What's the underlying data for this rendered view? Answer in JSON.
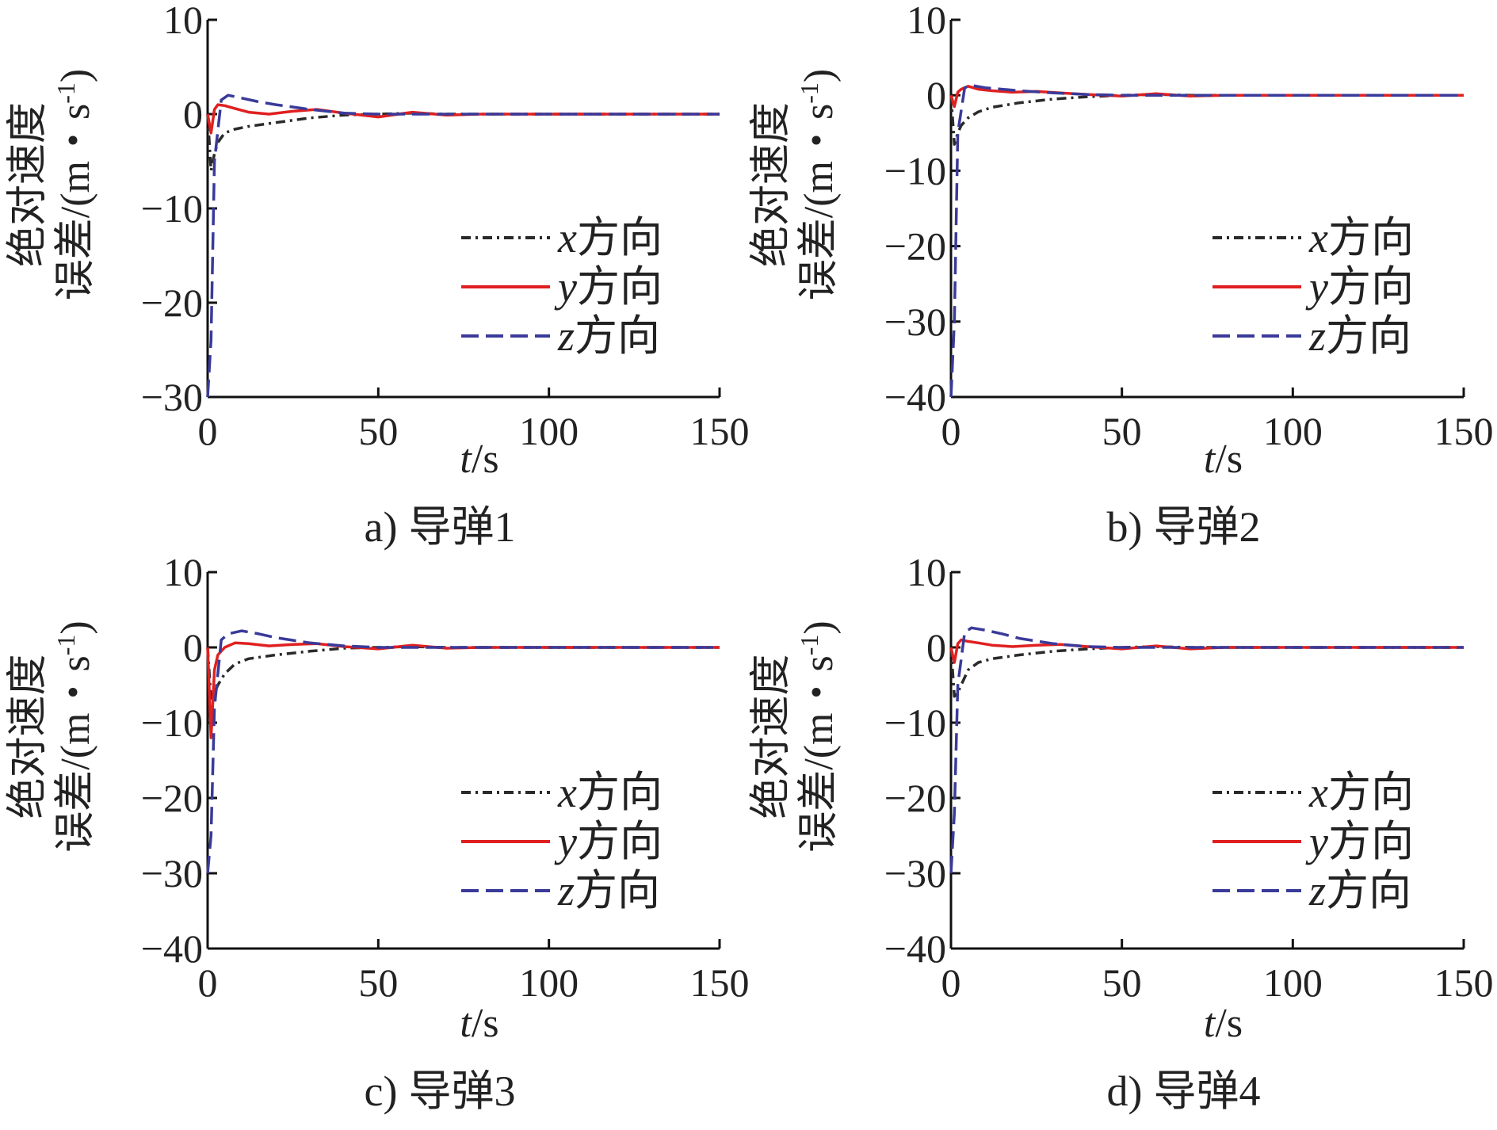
{
  "chart_data": [
    {
      "type": "line",
      "caption_label": "a)",
      "caption_name": "导弹1",
      "xlabel_var": "t",
      "xlabel_unit": "/s",
      "ylabel_line1": "绝对速度",
      "ylabel_line2_prefix": "误差/(m・s",
      "ylabel_sup": "-1",
      "ylabel_line2_suffix": ")",
      "xlim": [
        0,
        150
      ],
      "ylim": [
        -30,
        10
      ],
      "xticks": [
        "0",
        "50",
        "100",
        "150"
      ],
      "yticks": [
        "−30",
        "−20",
        "−10",
        "0",
        "10"
      ],
      "grid": false,
      "legend_position": "right",
      "series": [
        {
          "name_var": "x",
          "name_text": "方向",
          "color": "#2a2a2a",
          "dash": "dashdot",
          "x": [
            0,
            1,
            2,
            3,
            5,
            8,
            12,
            20,
            30,
            40,
            50,
            60,
            70,
            80,
            100,
            120,
            150
          ],
          "y": [
            0,
            -6,
            -4.2,
            -3,
            -2,
            -1.6,
            -1.3,
            -0.9,
            -0.4,
            -0.1,
            0,
            0.1,
            0,
            0,
            0,
            0,
            0
          ]
        },
        {
          "name_var": "y",
          "name_text": "方向",
          "color": "#e02020",
          "dash": "solid",
          "x": [
            0,
            1,
            2,
            3,
            5,
            8,
            12,
            18,
            25,
            32,
            40,
            50,
            60,
            70,
            80,
            90,
            100,
            120,
            150
          ],
          "y": [
            0,
            -2,
            0.5,
            1,
            0.9,
            0.6,
            0.2,
            0,
            0.3,
            0.5,
            0.1,
            -0.3,
            0.2,
            -0.1,
            0,
            0,
            0,
            0,
            0
          ]
        },
        {
          "name_var": "z",
          "name_text": "方向",
          "color": "#3a3a9a",
          "dash": "dashed",
          "x": [
            0,
            1,
            2,
            4,
            6,
            10,
            15,
            20,
            30,
            40,
            50,
            60,
            70,
            80,
            100,
            120,
            150
          ],
          "y": [
            -30,
            -24,
            -5,
            1.5,
            2,
            1.7,
            1.3,
            1,
            0.5,
            0.1,
            0,
            0,
            0,
            0,
            0,
            0,
            0
          ]
        }
      ]
    },
    {
      "type": "line",
      "caption_label": "b)",
      "caption_name": "导弹2",
      "xlabel_var": "t",
      "xlabel_unit": "/s",
      "ylabel_line1": "绝对速度",
      "ylabel_line2_prefix": "误差/(m・s",
      "ylabel_sup": "-1",
      "ylabel_line2_suffix": ")",
      "xlim": [
        0,
        150
      ],
      "ylim": [
        -40,
        10
      ],
      "xticks": [
        "0",
        "50",
        "100",
        "150"
      ],
      "yticks": [
        "−40",
        "−30",
        "−20",
        "−10",
        "0",
        "10"
      ],
      "grid": false,
      "legend_position": "right",
      "series": [
        {
          "name_var": "x",
          "name_text": "方向",
          "color": "#2a2a2a",
          "dash": "dashdot",
          "x": [
            0,
            1,
            2,
            3,
            5,
            8,
            12,
            20,
            30,
            40,
            50,
            60,
            70,
            80,
            100,
            120,
            150
          ],
          "y": [
            0,
            -6.5,
            -5,
            -4,
            -3,
            -2.2,
            -1.6,
            -1,
            -0.5,
            -0.2,
            0,
            0.1,
            0,
            0,
            0,
            0,
            0
          ]
        },
        {
          "name_var": "y",
          "name_text": "方向",
          "color": "#e02020",
          "dash": "solid",
          "x": [
            0,
            1,
            2,
            3,
            5,
            8,
            12,
            18,
            25,
            32,
            40,
            50,
            60,
            70,
            80,
            90,
            100,
            120,
            150
          ],
          "y": [
            0,
            -1.5,
            0.4,
            0.8,
            1.2,
            0.8,
            0.6,
            0.4,
            0.5,
            0.3,
            0.1,
            -0.1,
            0.2,
            -0.1,
            0,
            0,
            0,
            0,
            0
          ]
        },
        {
          "name_var": "z",
          "name_text": "方向",
          "color": "#3a3a9a",
          "dash": "dashed",
          "x": [
            0,
            1,
            2,
            4,
            6,
            10,
            15,
            20,
            30,
            40,
            50,
            60,
            70,
            80,
            100,
            120,
            150
          ],
          "y": [
            -40,
            -30,
            -5,
            1,
            1.3,
            1,
            0.8,
            0.6,
            0.3,
            0.1,
            0,
            0,
            0,
            0,
            0,
            0,
            0
          ]
        }
      ]
    },
    {
      "type": "line",
      "caption_label": "c)",
      "caption_name": "导弹3",
      "xlabel_var": "t",
      "xlabel_unit": "/s",
      "ylabel_line1": "绝对速度",
      "ylabel_line2_prefix": "误差/(m・s",
      "ylabel_sup": "-1",
      "ylabel_line2_suffix": ")",
      "xlim": [
        0,
        150
      ],
      "ylim": [
        -40,
        10
      ],
      "xticks": [
        "0",
        "50",
        "100",
        "150"
      ],
      "yticks": [
        "−40",
        "−30",
        "−20",
        "−10",
        "0",
        "10"
      ],
      "grid": false,
      "legend_position": "right",
      "series": [
        {
          "name_var": "x",
          "name_text": "方向",
          "color": "#2a2a2a",
          "dash": "dashdot",
          "x": [
            0,
            1,
            2,
            3,
            5,
            8,
            12,
            20,
            30,
            40,
            50,
            60,
            70,
            80,
            100,
            120,
            150
          ],
          "y": [
            0,
            -7,
            -6,
            -5,
            -3.5,
            -2.2,
            -1.5,
            -1,
            -0.5,
            -0.1,
            0,
            0.1,
            0,
            0,
            0,
            0,
            0
          ]
        },
        {
          "name_var": "y",
          "name_text": "方向",
          "color": "#e02020",
          "dash": "solid",
          "x": [
            0,
            1,
            2,
            3,
            5,
            8,
            12,
            18,
            25,
            32,
            40,
            50,
            60,
            70,
            80,
            90,
            100,
            120,
            150
          ],
          "y": [
            0,
            -12,
            -3,
            -1,
            0,
            0.6,
            0.5,
            0.2,
            0.4,
            0.5,
            0.1,
            -0.2,
            0.3,
            -0.1,
            0,
            0,
            0,
            0,
            0
          ]
        },
        {
          "name_var": "z",
          "name_text": "方向",
          "color": "#3a3a9a",
          "dash": "dashed",
          "x": [
            0,
            1,
            2,
            4,
            6,
            10,
            15,
            20,
            30,
            40,
            50,
            60,
            70,
            80,
            100,
            120,
            150
          ],
          "y": [
            -30,
            -25,
            -8,
            1,
            1.8,
            2.2,
            1.8,
            1.3,
            0.6,
            0.2,
            0,
            0,
            0,
            0,
            0,
            0,
            0
          ]
        }
      ]
    },
    {
      "type": "line",
      "caption_label": "d)",
      "caption_name": "导弹4",
      "xlabel_var": "t",
      "xlabel_unit": "/s",
      "ylabel_line1": "绝对速度",
      "ylabel_line2_prefix": "误差/(m・s",
      "ylabel_sup": "-1",
      "ylabel_line2_suffix": ")",
      "xlim": [
        0,
        150
      ],
      "ylim": [
        -40,
        10
      ],
      "xticks": [
        "0",
        "50",
        "100",
        "150"
      ],
      "yticks": [
        "−40",
        "−30",
        "−20",
        "−10",
        "0",
        "10"
      ],
      "grid": false,
      "legend_position": "right",
      "series": [
        {
          "name_var": "x",
          "name_text": "方向",
          "color": "#2a2a2a",
          "dash": "dashdot",
          "x": [
            0,
            1,
            2,
            3,
            5,
            8,
            12,
            20,
            30,
            40,
            50,
            60,
            70,
            80,
            100,
            120,
            150
          ],
          "y": [
            0,
            -6.5,
            -6,
            -5,
            -3,
            -2,
            -1.5,
            -1,
            -0.5,
            -0.2,
            0,
            0.1,
            0,
            0,
            0,
            0,
            0
          ]
        },
        {
          "name_var": "y",
          "name_text": "方向",
          "color": "#e02020",
          "dash": "solid",
          "x": [
            0,
            1,
            2,
            3,
            5,
            8,
            12,
            18,
            25,
            32,
            40,
            50,
            60,
            70,
            80,
            90,
            100,
            120,
            150
          ],
          "y": [
            0,
            -2,
            0.5,
            1,
            0.8,
            0.6,
            0.3,
            0.1,
            0.3,
            0.4,
            0.1,
            -0.2,
            0.2,
            -0.2,
            0,
            0,
            0,
            0,
            0
          ]
        },
        {
          "name_var": "z",
          "name_text": "方向",
          "color": "#3a3a9a",
          "dash": "dashed",
          "x": [
            0,
            1,
            2,
            4,
            6,
            10,
            15,
            20,
            30,
            40,
            50,
            60,
            70,
            80,
            100,
            120,
            150
          ],
          "y": [
            -30,
            -22,
            -5,
            2,
            2.6,
            2.3,
            1.8,
            1.2,
            0.5,
            0.1,
            0,
            0,
            0,
            0,
            0,
            0,
            0
          ]
        }
      ]
    }
  ]
}
